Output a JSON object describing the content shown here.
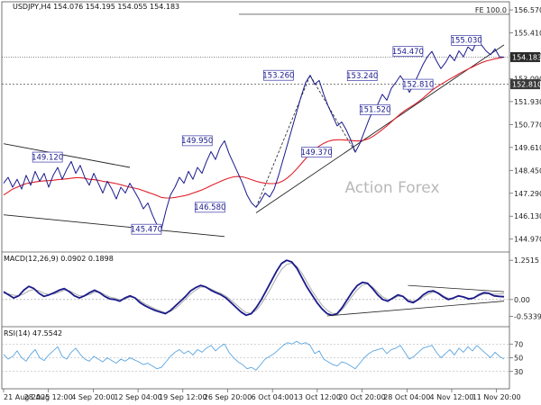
{
  "chart_data": [
    {
      "id": "price",
      "type": "line",
      "title": "USDJPY,H4  154.076 154.195 154.055 154.183",
      "y_ticks": [
        156.57,
        155.41,
        154.25,
        153.09,
        151.93,
        150.77,
        149.61,
        148.45,
        147.29,
        146.13,
        144.97
      ],
      "ylim": [
        144.5,
        156.8
      ],
      "grid": false,
      "levels": [
        {
          "label": "154.183",
          "value": 154.183
        },
        {
          "label": "152.810",
          "value": 152.81
        }
      ],
      "fe_label": "FE 100.0",
      "fe_value": 156.35,
      "watermark": "Action Forex",
      "annotations": [
        {
          "label": "149.120",
          "x": 0.09,
          "y": 149.12
        },
        {
          "label": "145.470",
          "x": 0.285,
          "y": 145.47
        },
        {
          "label": "149.950",
          "x": 0.385,
          "y": 149.95
        },
        {
          "label": "146.580",
          "x": 0.41,
          "y": 146.58
        },
        {
          "label": "153.260",
          "x": 0.545,
          "y": 153.26
        },
        {
          "label": "149.370",
          "x": 0.62,
          "y": 149.37
        },
        {
          "label": "151.520",
          "x": 0.735,
          "y": 151.52
        },
        {
          "label": "153.240",
          "x": 0.71,
          "y": 153.24
        },
        {
          "label": "154.470",
          "x": 0.8,
          "y": 154.47
        },
        {
          "label": "152.810",
          "x": 0.82,
          "y": 152.81
        },
        {
          "label": "155.030",
          "x": 0.915,
          "y": 155.03
        }
      ],
      "series": [
        {
          "name": "price",
          "color": "#1a1a8c",
          "values": [
            147.8,
            148.1,
            147.6,
            148.0,
            147.5,
            148.2,
            147.7,
            148.4,
            147.9,
            148.3,
            147.6,
            148.2,
            148.6,
            148.0,
            148.5,
            148.9,
            148.3,
            148.7,
            148.1,
            147.7,
            148.3,
            147.8,
            147.3,
            147.9,
            147.5,
            147.0,
            147.6,
            147.3,
            147.8,
            147.4,
            147.0,
            146.5,
            146.8,
            146.2,
            145.7,
            145.47,
            146.4,
            147.2,
            147.6,
            148.1,
            147.8,
            148.4,
            148.0,
            148.6,
            148.3,
            148.9,
            149.4,
            149.0,
            149.6,
            149.95,
            149.3,
            148.8,
            148.3,
            147.8,
            147.2,
            146.8,
            146.58,
            146.9,
            147.3,
            147.1,
            147.5,
            148.2,
            149.0,
            149.8,
            150.6,
            151.4,
            152.2,
            152.9,
            153.26,
            152.8,
            153.0,
            152.3,
            151.7,
            151.2,
            150.7,
            150.9,
            150.5,
            150.0,
            149.37,
            149.8,
            150.4,
            151.0,
            151.52,
            151.8,
            152.3,
            152.0,
            152.6,
            152.9,
            153.24,
            152.9,
            152.4,
            152.81,
            153.3,
            153.8,
            154.2,
            154.47,
            154.0,
            153.6,
            153.9,
            154.3,
            154.0,
            154.5,
            154.2,
            154.7,
            154.5,
            155.03,
            154.8,
            154.5,
            154.3,
            154.6,
            154.2,
            154.18
          ]
        },
        {
          "name": "ma",
          "color": "#e0202a",
          "values": [
            147.2,
            147.35,
            147.5,
            147.6,
            147.7,
            147.78,
            147.82,
            147.86,
            147.9,
            147.92,
            147.93,
            147.95,
            147.98,
            148.0,
            148.02,
            148.05,
            148.08,
            148.08,
            148.05,
            148.0,
            147.98,
            147.95,
            147.9,
            147.86,
            147.82,
            147.78,
            147.72,
            147.66,
            147.6,
            147.55,
            147.5,
            147.42,
            147.34,
            147.26,
            147.18,
            147.08,
            147.05,
            147.05,
            147.08,
            147.12,
            147.16,
            147.22,
            147.3,
            147.38,
            147.46,
            147.56,
            147.68,
            147.78,
            147.88,
            147.98,
            148.06,
            148.12,
            148.14,
            148.12,
            148.06,
            147.98,
            147.9,
            147.84,
            147.8,
            147.78,
            147.78,
            147.82,
            147.92,
            148.08,
            148.28,
            148.52,
            148.78,
            149.04,
            149.28,
            149.5,
            149.68,
            149.82,
            149.92,
            149.98,
            150.0,
            150.0,
            149.98,
            149.96,
            149.94,
            149.94,
            149.98,
            150.06,
            150.18,
            150.34,
            150.52,
            150.7,
            150.9,
            151.1,
            151.3,
            151.48,
            151.62,
            151.76,
            151.92,
            152.1,
            152.3,
            152.5,
            152.66,
            152.8,
            152.94,
            153.08,
            153.2,
            153.34,
            153.46,
            153.58,
            153.68,
            153.8,
            153.9,
            153.98,
            154.04,
            154.1,
            154.14,
            154.18
          ]
        }
      ]
    },
    {
      "id": "macd",
      "type": "line",
      "title": "MACD(12,26,9) 0.0902 0.1898",
      "y_ticks": [
        1.2515,
        0.0,
        -0.5339
      ],
      "ylim": [
        -0.75,
        1.4
      ],
      "series": [
        {
          "name": "MACD",
          "color": "#1a1a8c",
          "values": [
            0.25,
            0.15,
            0.05,
            0.12,
            0.3,
            0.42,
            0.35,
            0.2,
            0.1,
            0.15,
            0.22,
            0.3,
            0.35,
            0.25,
            0.12,
            0.05,
            0.12,
            0.22,
            0.3,
            0.22,
            0.1,
            0.02,
            0.0,
            -0.05,
            0.05,
            0.12,
            0.05,
            -0.1,
            -0.2,
            -0.28,
            -0.35,
            -0.4,
            -0.45,
            -0.35,
            -0.2,
            -0.05,
            0.1,
            0.28,
            0.38,
            0.45,
            0.4,
            0.3,
            0.22,
            0.15,
            0.05,
            -0.1,
            -0.25,
            -0.4,
            -0.5,
            -0.45,
            -0.25,
            0.0,
            0.3,
            0.6,
            0.9,
            1.15,
            1.25,
            1.2,
            1.0,
            0.7,
            0.4,
            0.15,
            -0.1,
            -0.3,
            -0.45,
            -0.5,
            -0.45,
            -0.25,
            0.0,
            0.25,
            0.45,
            0.55,
            0.52,
            0.35,
            0.15,
            0.0,
            -0.05,
            0.05,
            0.15,
            0.1,
            -0.05,
            -0.1,
            0.0,
            0.15,
            0.25,
            0.28,
            0.2,
            0.08,
            0.0,
            0.05,
            0.12,
            0.08,
            0.02,
            0.05,
            0.15,
            0.22,
            0.2,
            0.12,
            0.1,
            0.09
          ]
        },
        {
          "name": "Signal",
          "color": "#aaaaaa",
          "values": [
            0.2,
            0.18,
            0.14,
            0.12,
            0.18,
            0.28,
            0.32,
            0.28,
            0.2,
            0.16,
            0.18,
            0.24,
            0.3,
            0.28,
            0.2,
            0.12,
            0.12,
            0.16,
            0.24,
            0.24,
            0.16,
            0.08,
            0.04,
            0.0,
            0.02,
            0.08,
            0.06,
            -0.04,
            -0.14,
            -0.22,
            -0.3,
            -0.36,
            -0.42,
            -0.38,
            -0.28,
            -0.14,
            0.02,
            0.18,
            0.3,
            0.4,
            0.4,
            0.34,
            0.26,
            0.2,
            0.1,
            -0.02,
            -0.16,
            -0.3,
            -0.42,
            -0.44,
            -0.34,
            -0.14,
            0.12,
            0.4,
            0.7,
            0.96,
            1.12,
            1.16,
            1.06,
            0.84,
            0.56,
            0.28,
            0.04,
            -0.18,
            -0.34,
            -0.44,
            -0.44,
            -0.32,
            -0.12,
            0.12,
            0.32,
            0.46,
            0.5,
            0.4,
            0.24,
            0.08,
            0.0,
            0.02,
            0.1,
            0.1,
            0.0,
            -0.06,
            -0.02,
            0.08,
            0.18,
            0.24,
            0.22,
            0.12,
            0.04,
            0.04,
            0.1,
            0.08,
            0.04,
            0.04,
            0.12,
            0.18,
            0.19,
            0.17,
            0.18,
            0.19
          ]
        }
      ]
    },
    {
      "id": "rsi",
      "type": "line",
      "title": "RSI(14) 47.5542",
      "y_ticks": [
        70,
        50,
        30
      ],
      "ylim": [
        10,
        90
      ],
      "series": [
        {
          "name": "RSI",
          "color": "#5aa5e0",
          "values": [
            55,
            48,
            52,
            60,
            50,
            45,
            55,
            62,
            50,
            46,
            54,
            60,
            66,
            52,
            48,
            58,
            64,
            55,
            48,
            45,
            52,
            48,
            44,
            50,
            46,
            42,
            48,
            45,
            50,
            47,
            44,
            40,
            42,
            38,
            34,
            36,
            44,
            52,
            58,
            62,
            56,
            60,
            54,
            62,
            58,
            64,
            68,
            60,
            66,
            70,
            58,
            50,
            44,
            40,
            34,
            36,
            32,
            40,
            48,
            52,
            56,
            62,
            68,
            72,
            70,
            74,
            70,
            72,
            68,
            56,
            60,
            48,
            44,
            40,
            38,
            44,
            42,
            38,
            34,
            42,
            50,
            56,
            60,
            62,
            64,
            56,
            62,
            64,
            68,
            58,
            48,
            52,
            58,
            64,
            66,
            68,
            58,
            50,
            56,
            62,
            54,
            64,
            58,
            66,
            60,
            68,
            62,
            56,
            50,
            58,
            52,
            48
          ]
        }
      ]
    },
    {
      "id": "x_axis",
      "type": "axis",
      "x_ticks": [
        "21 Aug 2025",
        "28 Aug 12:00",
        "4 Sep 20:00",
        "12 Sep 04:00",
        "19 Sep 12:00",
        "26 Sep 20:00",
        "6 Oct 04:00",
        "13 Oct 12:00",
        "20 Oct 20:00",
        "28 Oct 04:00",
        "4 Nov 12:00",
        "11 Nov 20:00"
      ]
    }
  ],
  "colors": {
    "price": "#1a1a8c",
    "ma": "#e0202a",
    "box_border": "#3a3aa8",
    "levels": "#333333",
    "rsi": "#5aa5e0",
    "watermark": "#b8b8b8"
  }
}
